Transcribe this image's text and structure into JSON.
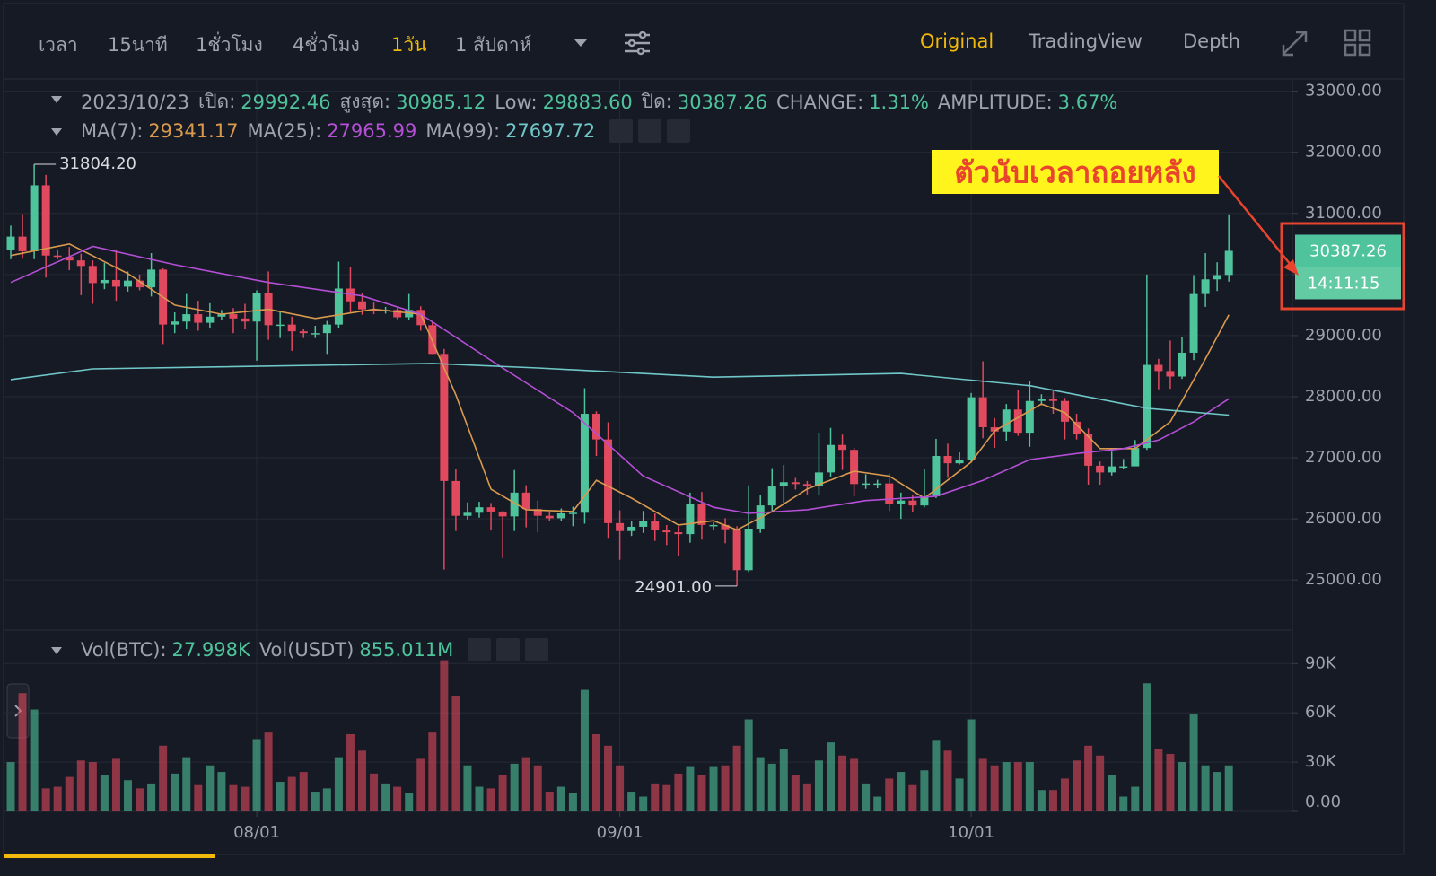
{
  "toolbar": {
    "intervals": [
      "เวลา",
      "15นาที",
      "1ชั่วโมง",
      "4ชั่วโมง",
      "1วัน",
      "1 สัปดาห์"
    ],
    "active_interval": 4,
    "views": [
      "Original",
      "TradingView",
      "Depth"
    ],
    "active_view": 0
  },
  "annotation": "ตัวนับเวลาถอยหลัง",
  "chart_data": {
    "type": "candlestick",
    "ohlc_header": {
      "date": "2023/10/23",
      "items": [
        {
          "label": "เปิด:",
          "value": "29992.46"
        },
        {
          "label": "สูงสุด:",
          "value": "30985.12"
        },
        {
          "label": "Low:",
          "value": "29883.60"
        },
        {
          "label": "ปิด:",
          "value": "30387.26"
        },
        {
          "label": "CHANGE:",
          "value": "1.31%"
        },
        {
          "label": "AMPLITUDE:",
          "value": "3.67%"
        }
      ]
    },
    "ma_header": [
      {
        "label": "MA(7):",
        "value": "29341.17"
      },
      {
        "label": "MA(25):",
        "value": "27965.99"
      },
      {
        "label": "MA(99):",
        "value": "27697.72"
      }
    ],
    "volume_header": [
      {
        "label": "Vol(BTC):",
        "value": "27.998K"
      },
      {
        "label": "Vol(USDT)",
        "value": "855.011M"
      }
    ],
    "up_color": "#4fc39b",
    "down_color": "#e0495e",
    "categories": [
      null,
      null,
      null,
      null,
      null,
      null,
      null,
      null,
      null,
      null,
      null,
      null,
      null,
      null,
      null,
      null,
      null,
      null,
      null,
      null,
      null,
      "08/01",
      null,
      null,
      null,
      null,
      null,
      null,
      null,
      null,
      null,
      null,
      null,
      null,
      null,
      null,
      null,
      null,
      null,
      null,
      null,
      null,
      null,
      null,
      null,
      null,
      null,
      null,
      null,
      null,
      null,
      null,
      "09/01",
      null,
      null,
      null,
      null,
      null,
      null,
      null,
      null,
      null,
      null,
      null,
      null,
      null,
      null,
      null,
      null,
      null,
      null,
      null,
      null,
      null,
      null,
      null,
      null,
      null,
      null,
      null,
      null,
      null,
      "10/01",
      null,
      null,
      null,
      null,
      null,
      null,
      null,
      null,
      null,
      null,
      null,
      null,
      null,
      null,
      null,
      null,
      null,
      null,
      null,
      null,
      null,
      null
    ],
    "open": [
      30400,
      30620,
      30380,
      31460,
      30310,
      30290,
      30230,
      30140,
      29860,
      29910,
      29800,
      29900,
      29790,
      30080,
      29180,
      29230,
      29350,
      29210,
      29310,
      29350,
      29280,
      29230,
      29700,
      29170,
      29180,
      29070,
      29040,
      29040,
      29180,
      29770,
      29560,
      29430,
      29400,
      29420,
      29300,
      29420,
      29170,
      28700,
      26620,
      26050,
      26100,
      26190,
      26120,
      26040,
      26430,
      26160,
      26050,
      26010,
      26090,
      26100,
      27720,
      27300,
      25930,
      25800,
      25870,
      25970,
      25810,
      25780,
      25750,
      26240,
      25900,
      25900,
      25830,
      25160,
      25840,
      26220,
      26530,
      26600,
      26570,
      26530,
      26760,
      27210,
      27130,
      26570,
      26580,
      26580,
      26250,
      26300,
      26220,
      26370,
      27030,
      26910,
      26970,
      27990,
      27500,
      27430,
      27790,
      27410,
      27930,
      27960,
      27930,
      27590,
      27390,
      26870,
      26760,
      26860,
      26860,
      27160,
      28520,
      28420,
      28330,
      28720,
      29680,
      29920,
      29992.46
    ],
    "high": [
      30800,
      30990,
      31804.2,
      31630,
      30410,
      30450,
      30340,
      30230,
      30190,
      30410,
      30050,
      30000,
      30350,
      30100,
      29380,
      29680,
      29570,
      29530,
      29420,
      29450,
      29520,
      29740,
      30050,
      29410,
      29310,
      29110,
      29160,
      29240,
      30210,
      30130,
      29700,
      29540,
      29470,
      29450,
      29680,
      29480,
      29230,
      28780,
      26810,
      26270,
      26280,
      26260,
      26130,
      26800,
      26550,
      26300,
      26120,
      26170,
      26200,
      28140,
      27760,
      27580,
      26140,
      25970,
      26130,
      26090,
      25900,
      25880,
      26430,
      26440,
      25940,
      26010,
      25880,
      26550,
      26390,
      26830,
      26880,
      26670,
      26620,
      27410,
      27490,
      27380,
      27160,
      26730,
      26640,
      26740,
      26430,
      26400,
      26820,
      27310,
      27230,
      27090,
      28060,
      28580,
      27650,
      27880,
      28110,
      28250,
      28040,
      28090,
      27980,
      27720,
      27480,
      26940,
      27100,
      26980,
      27290,
      30000,
      28620,
      28920,
      28980,
      29990,
      30350,
      30200,
      30985.12
    ],
    "low": [
      30250,
      30260,
      30250,
      29950,
      30250,
      30070,
      29660,
      29520,
      29760,
      29570,
      29720,
      29740,
      29640,
      28860,
      29040,
      29100,
      29080,
      29130,
      29260,
      29040,
      29100,
      28590,
      28930,
      28960,
      28750,
      28960,
      28960,
      28700,
      29130,
      29370,
      29340,
      29350,
      29360,
      29270,
      29250,
      29080,
      28700,
      25170,
      25800,
      25990,
      26020,
      25810,
      25360,
      25800,
      25860,
      25780,
      25970,
      25960,
      25880,
      25920,
      27030,
      25690,
      25330,
      25720,
      25770,
      25640,
      25570,
      25400,
      25610,
      25660,
      25810,
      25600,
      24901,
      25130,
      25770,
      26120,
      26250,
      26480,
      26400,
      26390,
      26680,
      26800,
      26370,
      26490,
      26500,
      26130,
      26000,
      26110,
      26190,
      26340,
      26670,
      26890,
      26940,
      27320,
      27160,
      27280,
      27360,
      27180,
      27860,
      27720,
      27300,
      27300,
      26560,
      26560,
      26710,
      26810,
      26860,
      27130,
      28120,
      28130,
      28290,
      28600,
      29470,
      29730,
      29883.6
    ],
    "close": [
      30620,
      30380,
      31460,
      30310,
      30290,
      30230,
      30140,
      29860,
      29910,
      29800,
      29900,
      29790,
      30080,
      29180,
      29230,
      29350,
      29210,
      29310,
      29350,
      29280,
      29230,
      29700,
      29170,
      29180,
      29070,
      29040,
      29040,
      29180,
      29770,
      29560,
      29430,
      29400,
      29420,
      29300,
      29420,
      29170,
      28700,
      26620,
      26050,
      26100,
      26190,
      26120,
      26040,
      26430,
      26160,
      26050,
      26010,
      26090,
      26100,
      27720,
      27300,
      25930,
      25800,
      25870,
      25970,
      25810,
      25780,
      25750,
      26240,
      25900,
      25900,
      25830,
      25160,
      25840,
      26220,
      26530,
      26600,
      26570,
      26530,
      26760,
      27210,
      27130,
      26570,
      26580,
      26580,
      26250,
      26300,
      26220,
      26370,
      27030,
      26910,
      26970,
      27990,
      27500,
      27430,
      27790,
      27410,
      27930,
      27960,
      27930,
      27590,
      27390,
      26870,
      26760,
      26860,
      26860,
      27160,
      28520,
      28420,
      28330,
      28720,
      29680,
      29920,
      29990,
      30387.26
    ],
    "volume": [
      30000,
      72000,
      62000,
      14000,
      15000,
      21000,
      31000,
      30000,
      22000,
      32000,
      19000,
      14000,
      17000,
      40000,
      23000,
      33000,
      16000,
      28000,
      24000,
      16000,
      15000,
      44000,
      48000,
      18000,
      21000,
      24000,
      12000,
      14000,
      33000,
      47000,
      37000,
      23000,
      17000,
      15000,
      11000,
      32000,
      48000,
      92000,
      70000,
      28000,
      15000,
      14000,
      22000,
      29000,
      33000,
      28000,
      12000,
      15000,
      11000,
      74000,
      47000,
      40000,
      28000,
      12000,
      9000,
      17000,
      16000,
      23000,
      27000,
      22000,
      27000,
      28000,
      40000,
      56000,
      33000,
      29000,
      38000,
      22000,
      17000,
      31000,
      42000,
      34000,
      32000,
      17000,
      9000,
      20000,
      24000,
      16000,
      25000,
      43000,
      37000,
      20000,
      56000,
      32000,
      28000,
      30000,
      30000,
      30000,
      13000,
      13000,
      20000,
      31000,
      40000,
      34000,
      22000,
      9000,
      15000,
      78000,
      38000,
      35000,
      30000,
      59000,
      28000,
      24000,
      27998
    ],
    "ma_lines": [
      {
        "color": "#d99a4e",
        "x": [
          0,
          5,
          10,
          14,
          18,
          22,
          26,
          31,
          35,
          38,
          41,
          44,
          48,
          50,
          53,
          57,
          60,
          62,
          65,
          68,
          72,
          75,
          78,
          82,
          84,
          88,
          90,
          93,
          96,
          99,
          102,
          104
        ],
        "values": [
          30310,
          30500,
          30015,
          29500,
          29350,
          29430,
          29280,
          29430,
          29350,
          28030,
          26485,
          26150,
          26120,
          26630,
          26340,
          25900,
          25970,
          25820,
          26120,
          26490,
          26780,
          26700,
          26340,
          26930,
          27440,
          27880,
          27740,
          27150,
          27150,
          27590,
          28620,
          29341.17
        ]
      },
      {
        "color": "#b44fd6",
        "x": [
          0,
          7,
          14,
          22,
          30,
          35,
          42,
          48,
          54,
          60,
          63,
          68,
          73,
          79,
          83,
          87,
          91,
          95,
          98,
          101,
          104
        ],
        "values": [
          29870,
          30460,
          30160,
          29870,
          29650,
          29350,
          28470,
          27740,
          26700,
          26190,
          26090,
          26150,
          26300,
          26370,
          26630,
          26970,
          27070,
          27150,
          27290,
          27590,
          27965.99
        ]
      },
      {
        "color": "#6fc7c8",
        "x": [
          0,
          7,
          36,
          45,
          60,
          76,
          87,
          97,
          104
        ],
        "values": [
          28280,
          28455,
          28545,
          28470,
          28320,
          28380,
          28180,
          27810,
          27697.72
        ]
      }
    ],
    "ylim": [
      24180,
      33200
    ],
    "yticks": [
      {
        "value": 25000,
        "label": "25000.00"
      },
      {
        "value": 26000,
        "label": "26000.00"
      },
      {
        "value": 27000,
        "label": "27000.00"
      },
      {
        "value": 28000,
        "label": "28000.00"
      },
      {
        "value": 29000,
        "label": "29000.00"
      },
      {
        "value": 30000,
        "label": "30000.00"
      },
      {
        "value": 31000,
        "label": "31000.00"
      },
      {
        "value": 32000,
        "label": "32000.00"
      },
      {
        "value": 33000,
        "label": "33000.00"
      }
    ],
    "volume_ylim": [
      0,
      106000
    ],
    "volume_yticks": [
      {
        "value": 0,
        "label": "0.00"
      },
      {
        "value": 30000,
        "label": "30K"
      },
      {
        "value": 60000,
        "label": "60K"
      },
      {
        "value": 90000,
        "label": "90K"
      }
    ],
    "max_label": "31804.20",
    "min_label": "24901.00",
    "last_price_label": "30387.26",
    "countdown": "14:11:15",
    "grid": true
  }
}
